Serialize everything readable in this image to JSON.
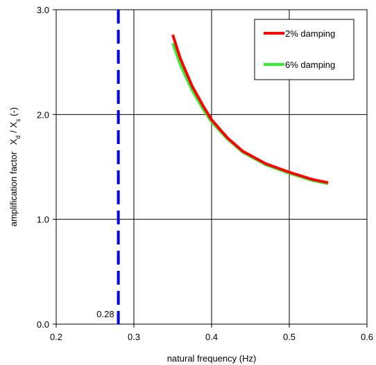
{
  "chart_data": {
    "type": "line",
    "title": "",
    "xlabel": "natural frequency (Hz)",
    "ylabel": {
      "main": "amplification factor",
      "ratio_num": "X",
      "ratio_num_sub": "d",
      "slash": " / ",
      "ratio_den": "X",
      "ratio_den_sub": "s",
      "unit": " (-)"
    },
    "xlim": [
      0.2,
      0.6
    ],
    "ylim": [
      0.0,
      3.0
    ],
    "x_ticks": [
      0.2,
      0.3,
      0.4,
      0.5,
      0.6
    ],
    "x_tick_labels": [
      "0.2",
      "0.3",
      "0.4",
      "0.5",
      "0.6"
    ],
    "y_ticks": [
      0.0,
      1.0,
      2.0,
      3.0
    ],
    "y_tick_labels": [
      "0.0",
      "1.0",
      "2.0",
      "3.0"
    ],
    "grid": true,
    "legend_position": "top-right",
    "series": [
      {
        "name": "2% damping",
        "color": "#ff0000",
        "x": [
          0.35,
          0.36,
          0.375,
          0.39,
          0.4,
          0.42,
          0.44,
          0.47,
          0.5,
          0.53,
          0.55
        ],
        "y": [
          2.76,
          2.53,
          2.27,
          2.07,
          1.95,
          1.78,
          1.65,
          1.53,
          1.45,
          1.38,
          1.35
        ]
      },
      {
        "name": "6% damping",
        "color": "#33ee33",
        "x": [
          0.35,
          0.36,
          0.375,
          0.39,
          0.4,
          0.42,
          0.44,
          0.47,
          0.5,
          0.53,
          0.55
        ],
        "y": [
          2.68,
          2.47,
          2.23,
          2.04,
          1.93,
          1.77,
          1.64,
          1.52,
          1.44,
          1.37,
          1.34
        ]
      }
    ],
    "reference_line": {
      "x": 0.28,
      "label": "0.28",
      "color": "#0000ee",
      "style": "dashed"
    }
  }
}
